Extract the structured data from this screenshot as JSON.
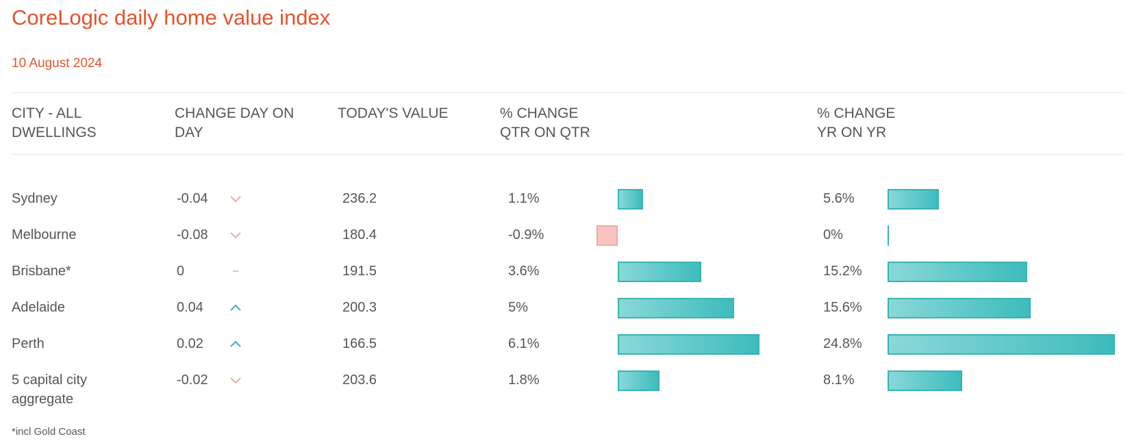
{
  "title": "CoreLogic daily home value index",
  "date": "10 August 2024",
  "headers": {
    "city": [
      "CITY - ALL",
      "DWELLINGS"
    ],
    "change": [
      "CHANGE DAY ON",
      "DAY"
    ],
    "value": [
      "TODAY'S VALUE"
    ],
    "qtr": [
      "% CHANGE",
      "QTR ON QTR"
    ],
    "yr": [
      "% CHANGE",
      "YR ON YR"
    ]
  },
  "colors": {
    "accent": "#e2542b",
    "positive": "#38b3b3",
    "negative": "#eea9a6"
  },
  "rows": [
    {
      "city": "Sydney",
      "city2": "",
      "change": "-0.04",
      "direction": "down",
      "value": "236.2",
      "qtr_label": "1.1%",
      "qtr": 1.1,
      "yr_label": "5.6%",
      "yr": 5.6
    },
    {
      "city": "Melbourne",
      "city2": "",
      "change": "-0.08",
      "direction": "down",
      "value": "180.4",
      "qtr_label": "-0.9%",
      "qtr": -0.9,
      "yr_label": "0%",
      "yr": 0
    },
    {
      "city": "Brisbane*",
      "city2": "",
      "change": "0",
      "direction": "flat",
      "value": "191.5",
      "qtr_label": "3.6%",
      "qtr": 3.6,
      "yr_label": "15.2%",
      "yr": 15.2
    },
    {
      "city": "Adelaide",
      "city2": "",
      "change": "0.04",
      "direction": "up",
      "value": "200.3",
      "qtr_label": "5%",
      "qtr": 5,
      "yr_label": "15.6%",
      "yr": 15.6
    },
    {
      "city": "Perth",
      "city2": "",
      "change": "0.02",
      "direction": "up",
      "value": "166.5",
      "qtr_label": "6.1%",
      "qtr": 6.1,
      "yr_label": "24.8%",
      "yr": 24.8
    },
    {
      "city": "5 capital city",
      "city2": "aggregate",
      "change": "-0.02",
      "direction": "down",
      "value": "203.6",
      "qtr_label": "1.8%",
      "qtr": 1.8,
      "yr_label": "8.1%",
      "yr": 8.1
    }
  ],
  "footnote": "*incl Gold Coast"
}
